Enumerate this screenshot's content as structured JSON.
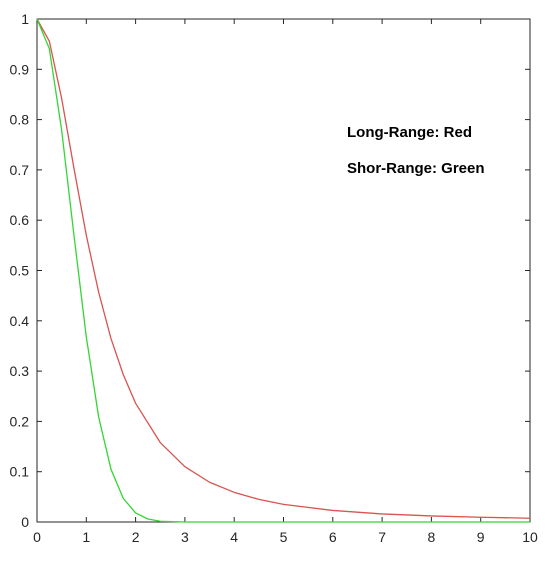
{
  "chart_data": {
    "type": "line",
    "title": "",
    "xlabel": "",
    "ylabel": "",
    "xlim": [
      0,
      10
    ],
    "ylim": [
      0,
      1
    ],
    "xticks": [
      "0",
      "1",
      "2",
      "3",
      "4",
      "5",
      "6",
      "7",
      "8",
      "9",
      "10"
    ],
    "yticks": [
      "0",
      "0.1",
      "0.2",
      "0.3",
      "0.4",
      "0.5",
      "0.6",
      "0.7",
      "0.8",
      "0.9",
      "1"
    ],
    "grid": false,
    "annotations": [
      "Long-Range: Red",
      "Shor-Range: Green"
    ],
    "series": [
      {
        "color": "#d9534f",
        "x": [
          0,
          0.25,
          0.5,
          0.75,
          1,
          1.25,
          1.5,
          1.75,
          2,
          2.5,
          3,
          3.5,
          4,
          4.5,
          5,
          6,
          7,
          8,
          9,
          10
        ],
        "y": [
          1,
          0.956,
          0.842,
          0.703,
          0.57,
          0.457,
          0.365,
          0.293,
          0.236,
          0.158,
          0.11,
          0.079,
          0.059,
          0.045,
          0.035,
          0.023,
          0.016,
          0.012,
          0.0095,
          0.0075
        ]
      },
      {
        "color": "#33d633",
        "x": [
          0,
          0.25,
          0.5,
          0.75,
          1,
          1.25,
          1.5,
          1.75,
          2,
          2.25,
          2.5,
          3,
          4,
          5,
          6,
          7,
          8,
          9,
          10
        ],
        "y": [
          1,
          0.941,
          0.779,
          0.57,
          0.368,
          0.209,
          0.105,
          0.047,
          0.018,
          0.006,
          0.0015,
          0,
          0,
          0,
          0,
          0,
          0,
          0,
          0
        ]
      }
    ]
  }
}
